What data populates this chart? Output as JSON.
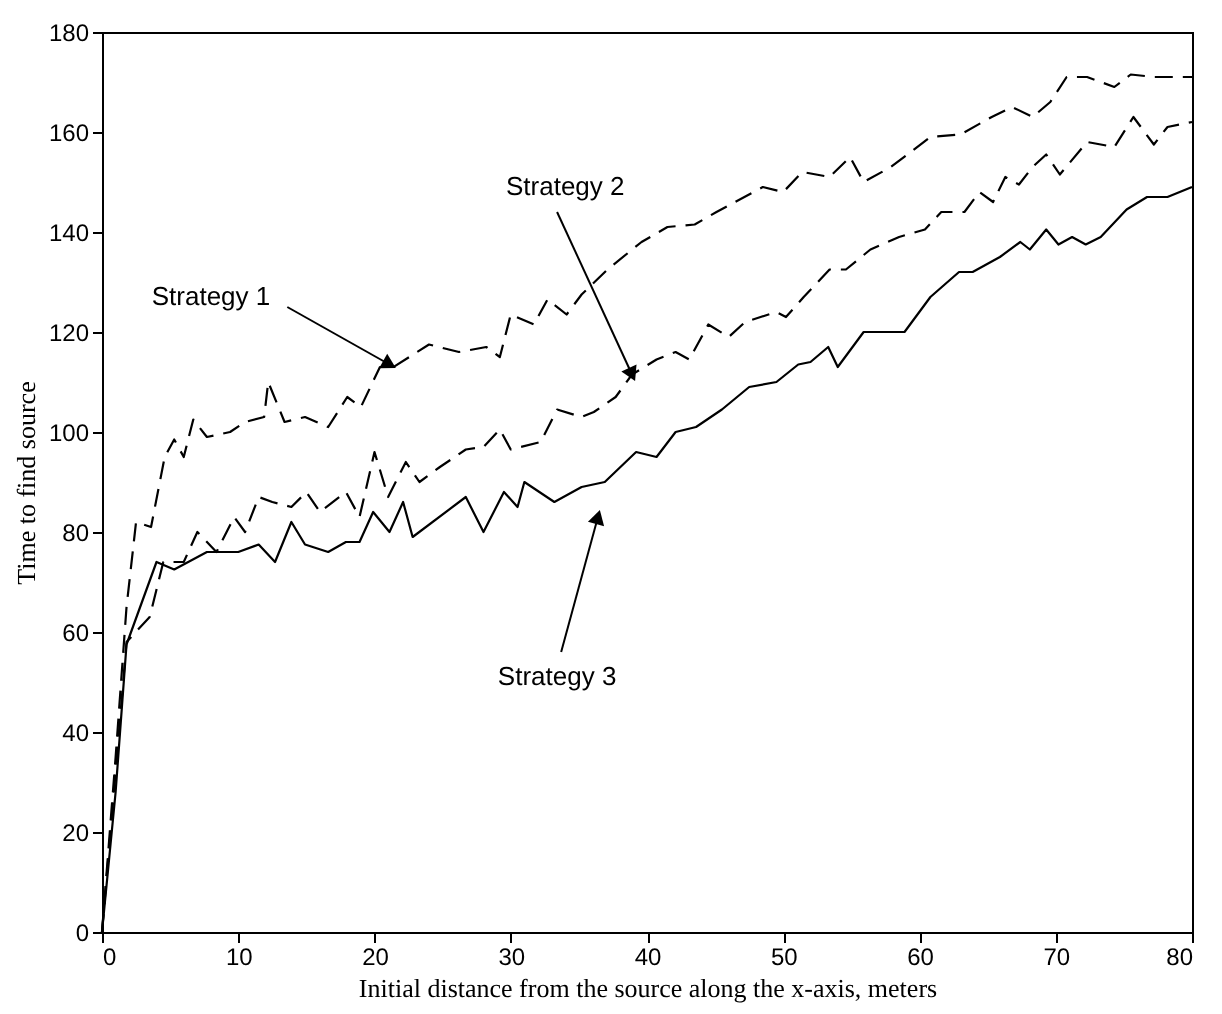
{
  "chart_data": {
    "type": "line",
    "xlabel": "Initial distance from the source along the x-axis, meters",
    "ylabel": "Time to find source",
    "xlim": [
      0,
      80
    ],
    "ylim": [
      0,
      180
    ],
    "xticks": [
      0,
      10,
      20,
      30,
      40,
      50,
      60,
      70,
      80
    ],
    "yticks": [
      0,
      20,
      40,
      60,
      80,
      100,
      120,
      140,
      160,
      180
    ],
    "grid": false,
    "marker": "none",
    "series": [
      {
        "color": "#000000",
        "line_style": "dashed",
        "x": [
          0,
          1,
          1.8,
          2.5,
          3.6,
          4.6,
          5.3,
          6,
          6.7,
          7.7,
          9.4,
          10.5,
          11.9,
          12.2,
          13.4,
          14.9,
          16.6,
          18,
          19,
          20.4,
          21.4,
          24,
          26.2,
          28.2,
          29.2,
          30,
          31.7,
          32.7,
          34.1,
          35.2,
          37.1,
          39.6,
          41.5,
          43.5,
          45.1,
          48.5,
          50,
          51.4,
          53.4,
          54.9,
          55.9,
          57.9,
          60.8,
          63,
          65.3,
          66.8,
          68.3,
          69.6,
          70.8,
          72.3,
          74.3,
          75.5,
          77.2,
          80
        ],
        "values": [
          0,
          35,
          65,
          82,
          81,
          95,
          98.5,
          95,
          102.5,
          99,
          100,
          102,
          103,
          110,
          102,
          103,
          101,
          107,
          105,
          113,
          113,
          117.5,
          116,
          117,
          115,
          123.5,
          121.5,
          126.5,
          123.5,
          127.5,
          132.5,
          138,
          141,
          141.5,
          144,
          149,
          148,
          152,
          151,
          155,
          150,
          153,
          159,
          159.5,
          163,
          165,
          163,
          166,
          171,
          171,
          169,
          171.5,
          171,
          171
        ]
      },
      {
        "color": "#000000",
        "line_style": "dashed",
        "x": [
          0,
          1,
          1.8,
          3.5,
          4.5,
          6,
          7,
          8.4,
          9.7,
          10.5,
          11.5,
          12.5,
          13.9,
          15,
          16,
          17.9,
          18.9,
          20,
          21,
          22.3,
          23.3,
          24.8,
          26.7,
          28,
          29.2,
          30,
          32.2,
          33.4,
          35.2,
          36.1,
          37.7,
          38.9,
          40.7,
          42.1,
          43.1,
          44.5,
          46,
          47.2,
          49.5,
          50.2,
          51.5,
          53.4,
          54.6,
          56.4,
          58.5,
          60.4,
          61.6,
          63.3,
          64.4,
          65.4,
          66.3,
          67.3,
          68.3,
          69.3,
          70.3,
          72.3,
          74.3,
          75.7,
          77.2,
          78.2,
          80
        ],
        "values": [
          0,
          32,
          58,
          63,
          74,
          74,
          80,
          76,
          83,
          80,
          87,
          86,
          85,
          88,
          84,
          88,
          83,
          96,
          87,
          94,
          90,
          93,
          96.5,
          97,
          100.5,
          96.5,
          98,
          104.5,
          103,
          104,
          107,
          111.5,
          114.5,
          116,
          114.5,
          121.5,
          119,
          122,
          124,
          123,
          127,
          132.5,
          132.5,
          136.5,
          139,
          140.5,
          144,
          144,
          148,
          146,
          151,
          149.5,
          153,
          155.5,
          151.5,
          158,
          157,
          163,
          157.5,
          161,
          162
        ]
      },
      {
        "color": "#000000",
        "line_style": "solid",
        "x": [
          0,
          1,
          1.8,
          4,
          5.3,
          7.7,
          10,
          11.5,
          12.7,
          13.9,
          14.9,
          16.6,
          17.9,
          18.9,
          19.9,
          21.1,
          22.1,
          22.8,
          26.7,
          28,
          29.5,
          30.5,
          31,
          33.2,
          35.2,
          36.9,
          39.2,
          40.7,
          42.1,
          43.6,
          45.5,
          47.5,
          49.5,
          51.1,
          52,
          53.3,
          54,
          55.9,
          58.9,
          60.8,
          62.9,
          63.9,
          65.9,
          67.4,
          68.1,
          69.3,
          70.2,
          71.2,
          72.2,
          73.3,
          75.2,
          76.7,
          78.2,
          80
        ],
        "values": [
          0,
          28,
          57.5,
          74,
          72.5,
          76,
          76,
          77.5,
          74,
          82,
          77.5,
          76,
          78,
          78,
          84,
          80,
          86,
          79,
          87,
          80,
          88,
          85,
          90,
          86,
          89,
          90,
          96,
          95,
          100,
          101,
          104.5,
          109,
          110,
          113.5,
          114,
          117,
          113,
          120,
          120,
          127,
          132,
          132,
          135,
          138,
          136.5,
          140.5,
          137.5,
          139,
          137.5,
          139,
          144.5,
          147,
          147,
          149
        ]
      }
    ],
    "annotations": [
      {
        "text": "Strategy 1",
        "x": 21.1,
        "y": 113.5
      },
      {
        "text": "Strategy 2",
        "x": 38.9,
        "y": 111.5
      },
      {
        "text": "Strategy 3",
        "x": 36.4,
        "y": 83
      }
    ]
  }
}
